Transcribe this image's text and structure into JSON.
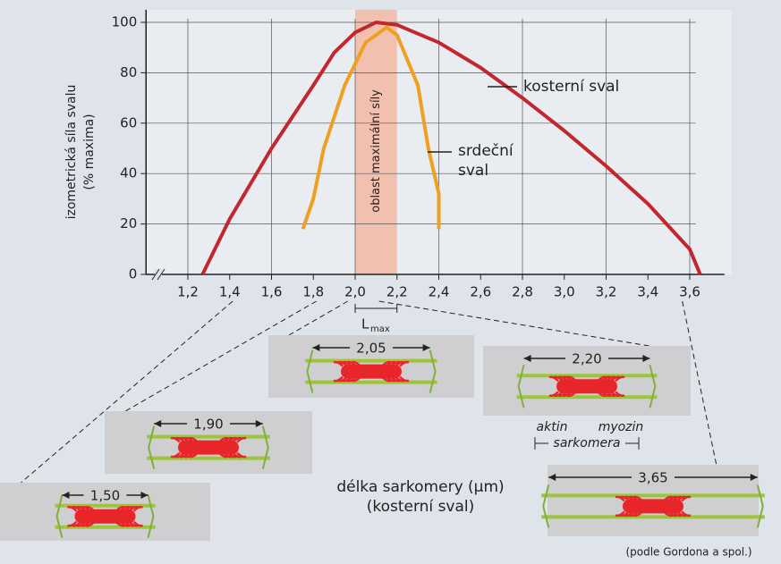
{
  "chart_data": {
    "type": "line",
    "y_label": [
      "izometrická síla svalu",
      "(% maxima)"
    ],
    "xlim": [
      1.0,
      3.8
    ],
    "ylim": [
      0,
      105
    ],
    "xticks": [
      {
        "value": 1.2,
        "label": "1,2"
      },
      {
        "value": 1.4,
        "label": "1,4"
      },
      {
        "value": 1.6,
        "label": "1,6"
      },
      {
        "value": 1.8,
        "label": "1,8"
      },
      {
        "value": 2.0,
        "label": "2,0"
      },
      {
        "value": 2.2,
        "label": "2,2"
      },
      {
        "value": 2.4,
        "label": "2,4"
      },
      {
        "value": 2.6,
        "label": "2,6"
      },
      {
        "value": 2.8,
        "label": "2,8"
      },
      {
        "value": 3.0,
        "label": "3,0"
      },
      {
        "value": 3.2,
        "label": "3,2"
      },
      {
        "value": 3.4,
        "label": "3,4"
      },
      {
        "value": 3.6,
        "label": "3,6"
      }
    ],
    "yticks": [
      0,
      20,
      40,
      60,
      80,
      100
    ],
    "grid": true,
    "band": {
      "from": 2.0,
      "to": 2.2,
      "label": "oblast maximální síly",
      "color": "#f3b9a3"
    },
    "lmax": {
      "main": "L",
      "sub": "max"
    },
    "series": [
      {
        "name": "kosterní sval",
        "color": "#c1272d",
        "x": [
          1.27,
          1.4,
          1.6,
          1.8,
          1.9,
          2.0,
          2.1,
          2.2,
          2.4,
          2.6,
          2.8,
          3.0,
          3.2,
          3.4,
          3.6,
          3.65
        ],
        "values": [
          0,
          22,
          50,
          75,
          88,
          96,
          100,
          99,
          92,
          82,
          70,
          57,
          43,
          28,
          10,
          0
        ]
      },
      {
        "name": "srdeční sval",
        "color": "#f0a020",
        "x": [
          1.75,
          1.8,
          1.85,
          1.95,
          2.05,
          2.15,
          2.2,
          2.3,
          2.35,
          2.4,
          2.4
        ],
        "values": [
          18,
          30,
          50,
          75,
          92,
          98,
          95,
          75,
          50,
          32,
          18
        ]
      }
    ],
    "x_label": [
      "délka sarkomery (µm)",
      "(kosterní sval)"
    ],
    "panels": [
      {
        "value": 1.5,
        "label": "1,50"
      },
      {
        "value": 1.9,
        "label": "1,90"
      },
      {
        "value": 2.05,
        "label": "2,05"
      },
      {
        "value": 2.2,
        "label": "2,20"
      },
      {
        "value": 3.65,
        "label": "3,65"
      }
    ],
    "filament_labels": {
      "actin": "aktin",
      "myosin": "myozin",
      "sarcomere": "sarkomera"
    },
    "source": "(podle Gordona a spol.)"
  }
}
